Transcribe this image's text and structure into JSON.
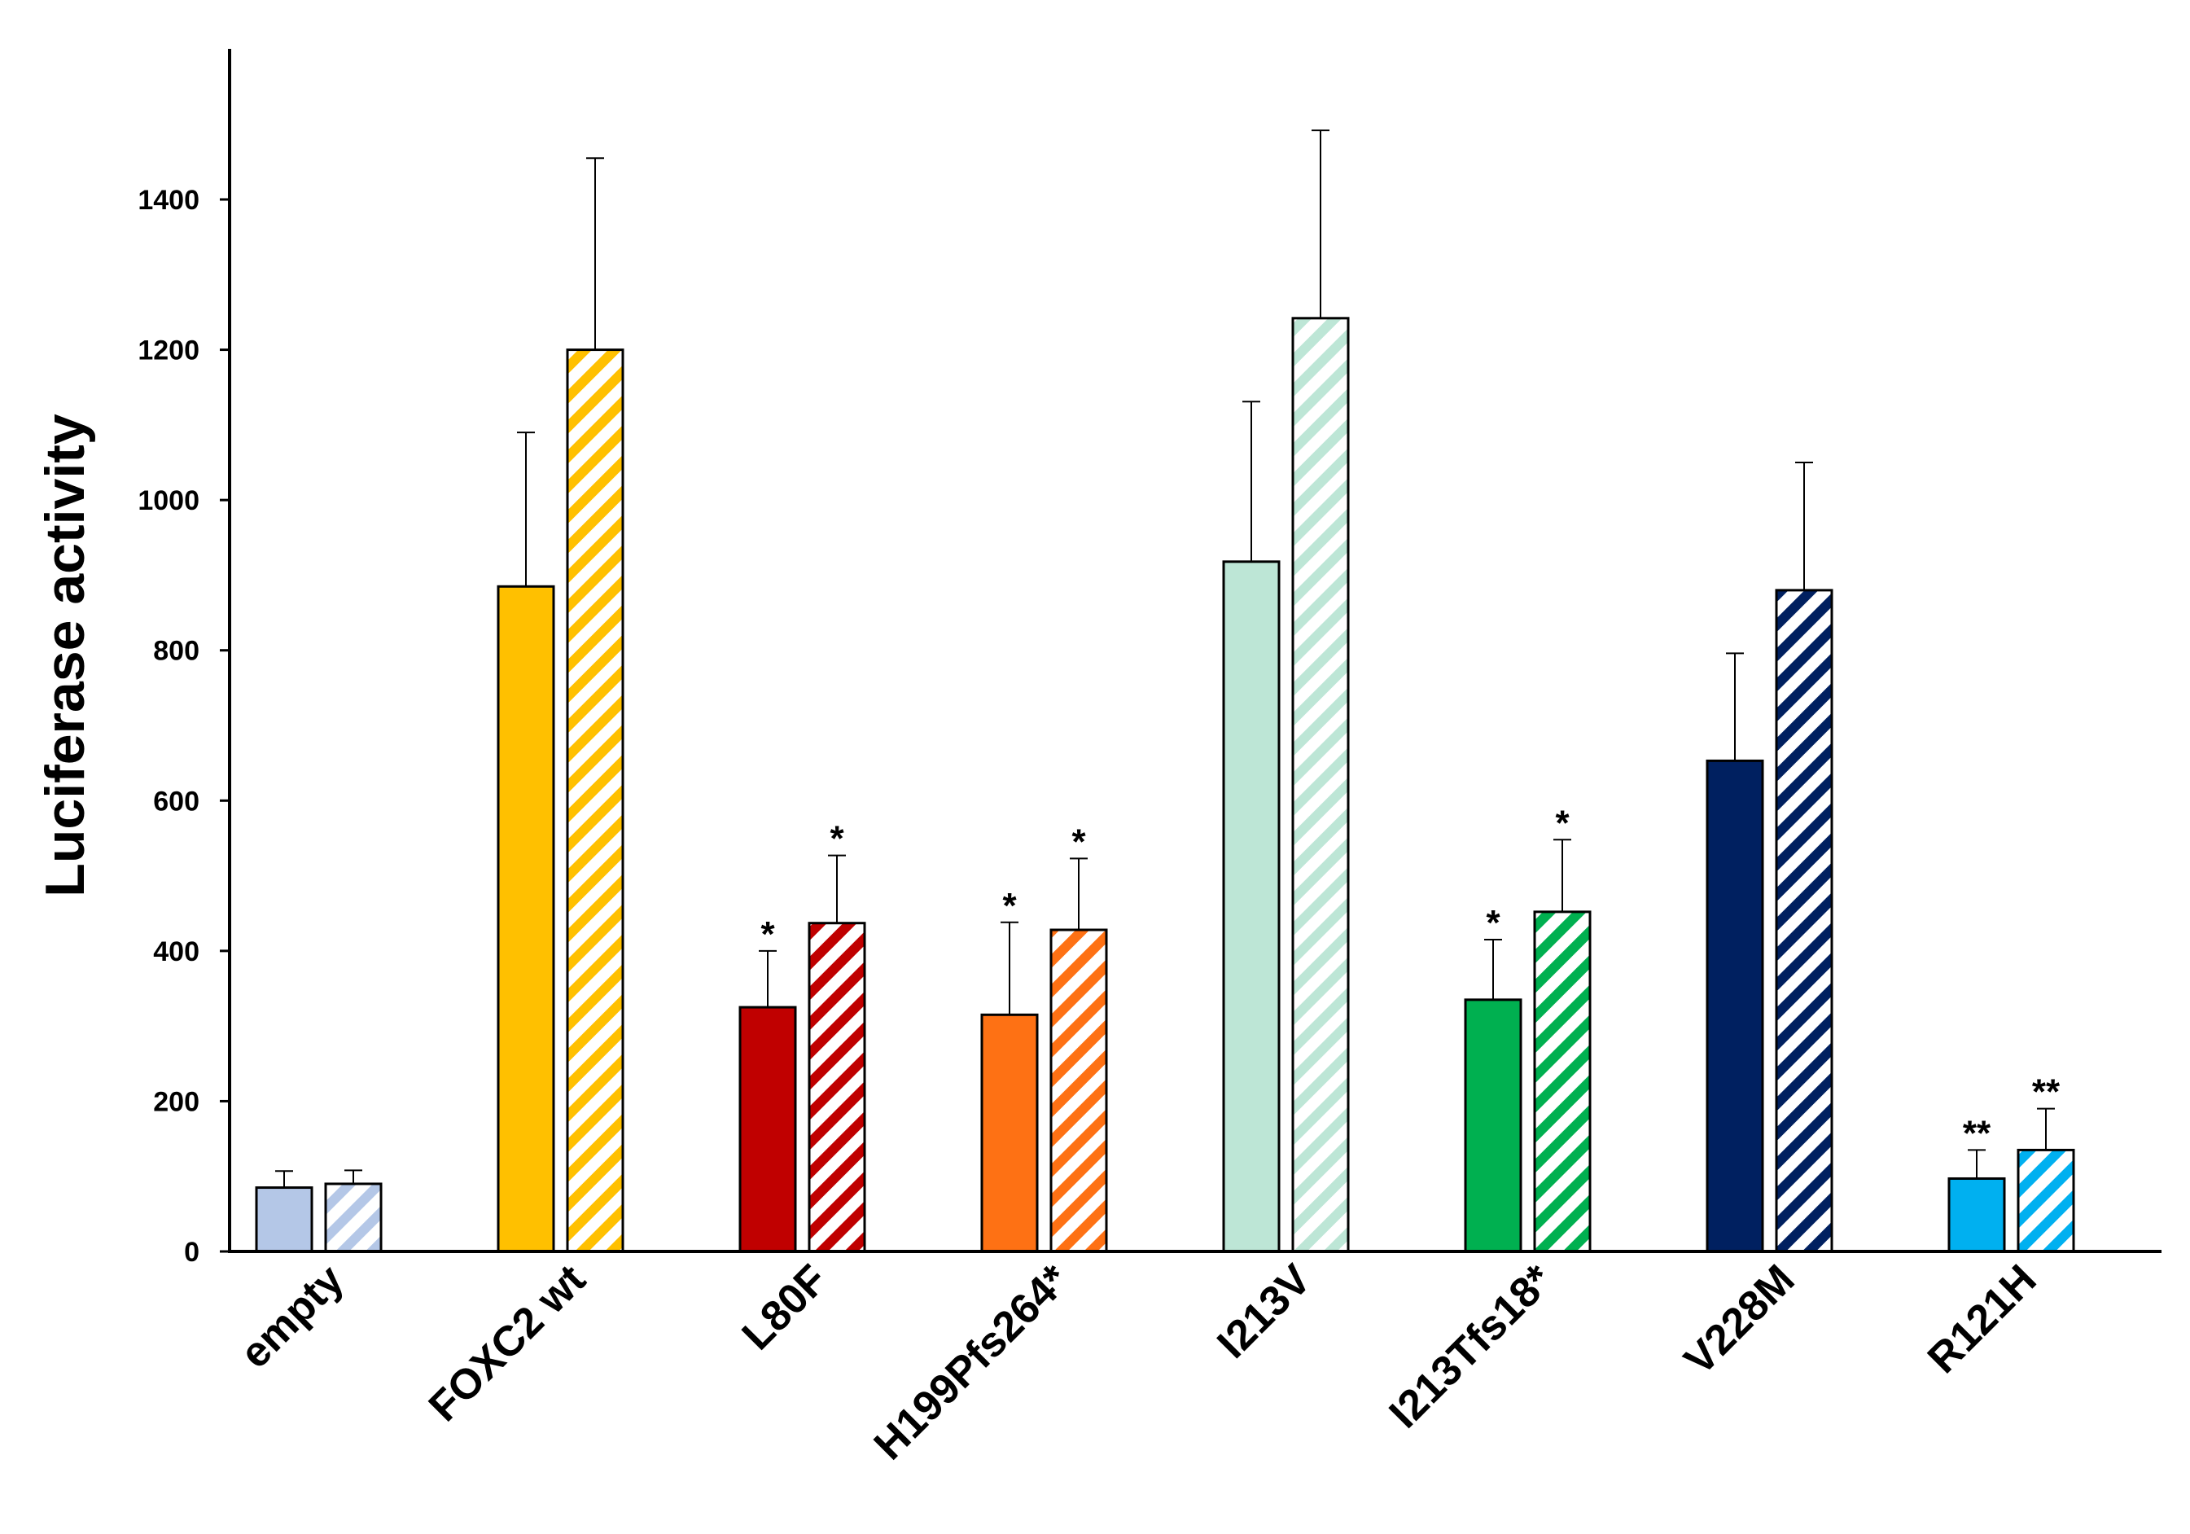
{
  "chart_data": {
    "type": "bar",
    "ylabel": "Luciferase activity",
    "xlabel": "",
    "title": "",
    "ylim": [
      0,
      1600
    ],
    "yticks": [
      0,
      200,
      400,
      600,
      800,
      1000,
      1200,
      1400
    ],
    "grid": false,
    "legend": "none",
    "categories": [
      {
        "label": "empty",
        "colors": [
          "#b4c7e7",
          "#b4c7e7"
        ],
        "values": [
          85,
          90
        ],
        "errors": [
          22,
          18
        ],
        "sig": [
          "",
          ""
        ]
      },
      {
        "label": "FOXC2 wt",
        "colors": [
          "#ffc000",
          "#ffc000"
        ],
        "values": [
          885,
          1200
        ],
        "errors": [
          205,
          255
        ],
        "sig": [
          "",
          ""
        ]
      },
      {
        "label": "L80F",
        "colors": [
          "#c00000",
          "#c00000"
        ],
        "values": [
          325,
          437
        ],
        "errors": [
          75,
          90
        ],
        "sig": [
          "*",
          "*"
        ]
      },
      {
        "label": "H199Pfs264*",
        "colors": [
          "#fe7114",
          "#fe7114"
        ],
        "values": [
          315,
          428
        ],
        "errors": [
          123,
          95
        ],
        "sig": [
          "*",
          "*"
        ]
      },
      {
        "label": "I213V",
        "colors": [
          "#bde6d6",
          "#bde6d6"
        ],
        "values": [
          918,
          1242
        ],
        "errors": [
          213,
          250
        ],
        "sig": [
          "",
          ""
        ]
      },
      {
        "label": "I213Tfs18*",
        "colors": [
          "#00b050",
          "#00b050"
        ],
        "values": [
          335,
          452
        ],
        "errors": [
          80,
          96
        ],
        "sig": [
          "*",
          "*"
        ]
      },
      {
        "label": "V228M",
        "colors": [
          "#002060",
          "#002060"
        ],
        "values": [
          653,
          880
        ],
        "errors": [
          143,
          170
        ],
        "sig": [
          "",
          ""
        ]
      },
      {
        "label": "R121H",
        "colors": [
          "#00b0f0",
          "#00b0f0"
        ],
        "values": [
          97,
          135
        ],
        "errors": [
          38,
          55
        ],
        "sig": [
          "**",
          "**"
        ]
      }
    ],
    "bar_styles": [
      "solid",
      "hatched"
    ]
  }
}
